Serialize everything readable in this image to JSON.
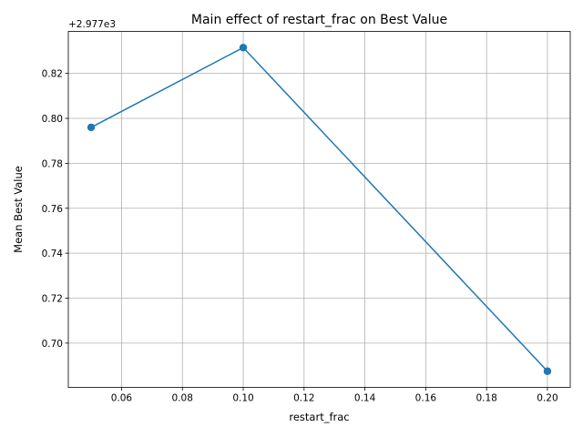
{
  "chart_data": {
    "type": "line",
    "title": "Main effect of restart_frac on Best Value",
    "xlabel": "restart_frac",
    "ylabel": "Mean Best Value",
    "y_offset_text": "+2.977e3",
    "x": [
      0.05,
      0.1,
      0.2
    ],
    "series": [
      {
        "values": [
          0.796,
          0.8315,
          0.6875
        ],
        "color": "#1f77b4"
      }
    ],
    "xlim": [
      0.0425,
      0.2075
    ],
    "ylim": [
      0.6803,
      0.8387
    ],
    "xticks": [
      0.06,
      0.08,
      0.1,
      0.12,
      0.14,
      0.16,
      0.18,
      0.2
    ],
    "xtick_labels": [
      "0.06",
      "0.08",
      "0.10",
      "0.12",
      "0.14",
      "0.16",
      "0.18",
      "0.20"
    ],
    "yticks": [
      0.7,
      0.72,
      0.74,
      0.76,
      0.78,
      0.8,
      0.82
    ],
    "ytick_labels": [
      "0.70",
      "0.72",
      "0.74",
      "0.76",
      "0.78",
      "0.80",
      "0.82"
    ],
    "grid": true,
    "markers": "circle"
  }
}
